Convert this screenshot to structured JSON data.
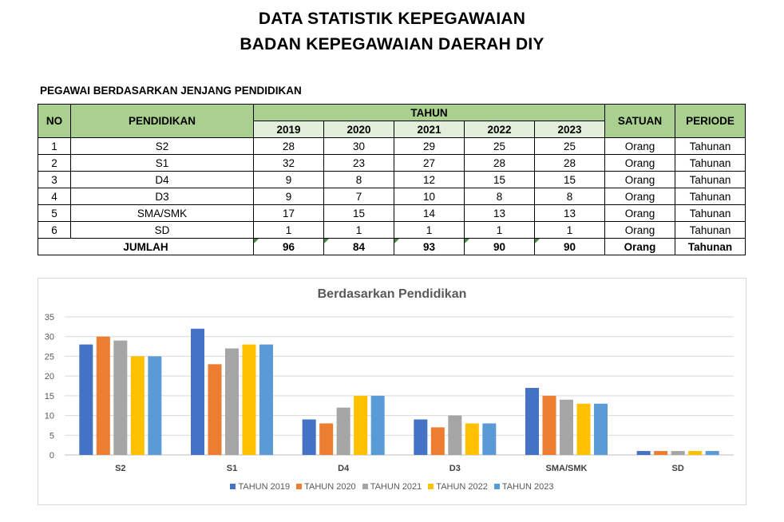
{
  "header": {
    "title_line1": "DATA STATISTIK KEPEGAWAIAN",
    "title_line2": "BADAN KEPEGAWAIAN DAERAH DIY"
  },
  "section_title": "PEGAWAI BERDASARKAN JENJANG PENDIDIKAN",
  "table": {
    "headers": {
      "no": "NO",
      "pendidikan": "PENDIDIKAN",
      "tahun": "TAHUN",
      "years": [
        "2019",
        "2020",
        "2021",
        "2022",
        "2023"
      ],
      "satuan": "SATUAN",
      "periode": "PERIODE"
    },
    "rows": [
      {
        "no": "1",
        "pendidikan": "S2",
        "values": [
          "28",
          "30",
          "29",
          "25",
          "25"
        ],
        "satuan": "Orang",
        "periode": "Tahunan"
      },
      {
        "no": "2",
        "pendidikan": "S1",
        "values": [
          "32",
          "23",
          "27",
          "28",
          "28"
        ],
        "satuan": "Orang",
        "periode": "Tahunan"
      },
      {
        "no": "3",
        "pendidikan": "D4",
        "values": [
          "9",
          "8",
          "12",
          "15",
          "15"
        ],
        "satuan": "Orang",
        "periode": "Tahunan"
      },
      {
        "no": "4",
        "pendidikan": "D3",
        "values": [
          "9",
          "7",
          "10",
          "8",
          "8"
        ],
        "satuan": "Orang",
        "periode": "Tahunan"
      },
      {
        "no": "5",
        "pendidikan": "SMA/SMK",
        "values": [
          "17",
          "15",
          "14",
          "13",
          "13"
        ],
        "satuan": "Orang",
        "periode": "Tahunan"
      },
      {
        "no": "6",
        "pendidikan": "SD",
        "values": [
          "1",
          "1",
          "1",
          "1",
          "1"
        ],
        "satuan": "Orang",
        "periode": "Tahunan"
      }
    ],
    "total": {
      "label": "JUMLAH",
      "values": [
        "96",
        "84",
        "93",
        "90",
        "90"
      ],
      "satuan": "Orang",
      "periode": "Tahunan"
    }
  },
  "colors": {
    "header_green": "#a9d08e",
    "year_header_green": "#e2efda",
    "series": [
      "#4472c4",
      "#ed7d31",
      "#a5a5a5",
      "#ffc000",
      "#5b9bd5"
    ]
  },
  "chart_data": {
    "type": "bar",
    "title": "Berdasarkan Pendidikan",
    "categories": [
      "S2",
      "S1",
      "D4",
      "D3",
      "SMA/SMK",
      "SD"
    ],
    "series": [
      {
        "name": "TAHUN 2019",
        "values": [
          28,
          32,
          9,
          9,
          17,
          1
        ]
      },
      {
        "name": "TAHUN 2020",
        "values": [
          30,
          23,
          8,
          7,
          15,
          1
        ]
      },
      {
        "name": "TAHUN 2021",
        "values": [
          29,
          27,
          12,
          10,
          14,
          1
        ]
      },
      {
        "name": "TAHUN 2022",
        "values": [
          25,
          28,
          15,
          8,
          13,
          1
        ]
      },
      {
        "name": "TAHUN 2023",
        "values": [
          25,
          28,
          15,
          8,
          13,
          1
        ]
      }
    ],
    "yticks": [
      "0",
      "5",
      "10",
      "15",
      "20",
      "25",
      "30",
      "35"
    ],
    "ylim": [
      0,
      35
    ],
    "xlabel": "",
    "ylabel": "",
    "grid": true,
    "legend_position": "bottom"
  }
}
